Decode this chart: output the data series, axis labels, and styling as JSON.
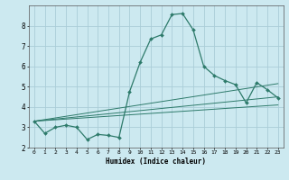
{
  "xlabel": "Humidex (Indice chaleur)",
  "bg_color": "#cce9f0",
  "grid_color": "#aacdd8",
  "line_color": "#2d7a6a",
  "xlim": [
    -0.5,
    23.5
  ],
  "ylim": [
    2.0,
    9.0
  ],
  "yticks": [
    2,
    3,
    4,
    5,
    6,
    7,
    8
  ],
  "xticks": [
    0,
    1,
    2,
    3,
    4,
    5,
    6,
    7,
    8,
    9,
    10,
    11,
    12,
    13,
    14,
    15,
    16,
    17,
    18,
    19,
    20,
    21,
    22,
    23
  ],
  "main_curve_x": [
    0,
    1,
    2,
    3,
    4,
    5,
    6,
    7,
    8,
    9,
    10,
    11,
    12,
    13,
    14,
    15,
    16,
    17,
    18,
    19,
    20,
    21,
    22,
    23
  ],
  "main_curve_y": [
    3.3,
    2.7,
    3.0,
    3.1,
    3.0,
    2.4,
    2.65,
    2.6,
    2.5,
    4.75,
    6.2,
    7.35,
    7.55,
    8.55,
    8.6,
    7.8,
    6.0,
    5.55,
    5.3,
    5.1,
    4.2,
    5.2,
    4.85,
    4.45
  ],
  "line2_x": [
    0,
    23
  ],
  "line2_y": [
    3.3,
    4.1
  ],
  "line3_x": [
    0,
    23
  ],
  "line3_y": [
    3.3,
    4.5
  ],
  "line4_x": [
    0,
    23
  ],
  "line4_y": [
    3.3,
    5.15
  ]
}
